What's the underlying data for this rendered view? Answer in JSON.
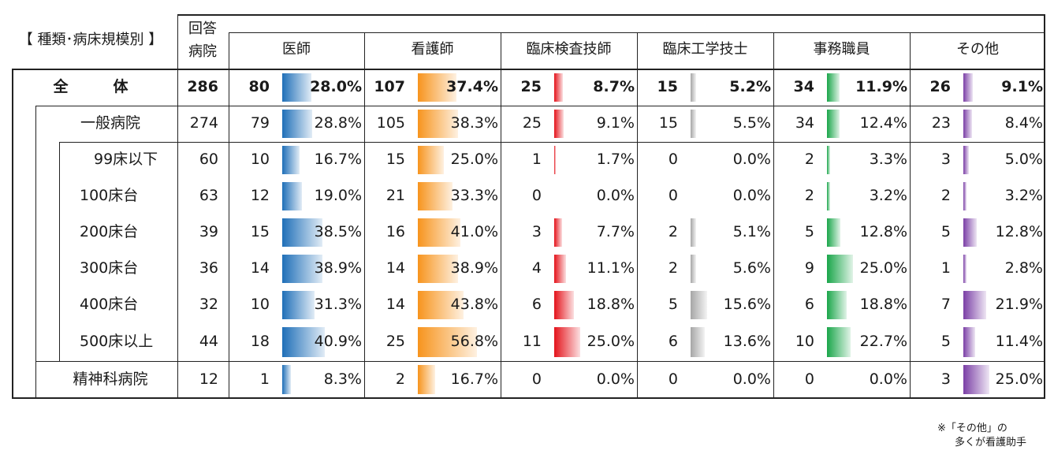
{
  "header": {
    "category_label": "【 種類･病床規模別 】",
    "respondents_label_line1": "回答",
    "respondents_label_line2": "病院",
    "columns": [
      {
        "label": "医師",
        "color": "#1f6fb8"
      },
      {
        "label": "看護師",
        "color": "#f7941d"
      },
      {
        "label": "臨床検査技師",
        "color": "#e4131b"
      },
      {
        "label": "臨床工学技士",
        "color": "#a6a6a6"
      },
      {
        "label": "事務職員",
        "color": "#1aa64a"
      },
      {
        "label": "その他",
        "color": "#7b3fa6"
      }
    ]
  },
  "rows": [
    {
      "label": "全　　　体",
      "respondents": "286",
      "bold": true,
      "cells": [
        {
          "count": "80",
          "pct": "28.0%",
          "value": 28.0
        },
        {
          "count": "107",
          "pct": "37.4%",
          "value": 37.4
        },
        {
          "count": "25",
          "pct": "8.7%",
          "value": 8.7
        },
        {
          "count": "15",
          "pct": "5.2%",
          "value": 5.2
        },
        {
          "count": "34",
          "pct": "11.9%",
          "value": 11.9
        },
        {
          "count": "26",
          "pct": "9.1%",
          "value": 9.1
        }
      ]
    },
    {
      "label": "一般病院",
      "respondents": "274",
      "cells": [
        {
          "count": "79",
          "pct": "28.8%",
          "value": 28.8
        },
        {
          "count": "105",
          "pct": "38.3%",
          "value": 38.3
        },
        {
          "count": "25",
          "pct": "9.1%",
          "value": 9.1
        },
        {
          "count": "15",
          "pct": "5.5%",
          "value": 5.5
        },
        {
          "count": "34",
          "pct": "12.4%",
          "value": 12.4
        },
        {
          "count": "23",
          "pct": "8.4%",
          "value": 8.4
        }
      ]
    },
    {
      "label": "99床以下",
      "respondents": "60",
      "cells": [
        {
          "count": "10",
          "pct": "16.7%",
          "value": 16.7
        },
        {
          "count": "15",
          "pct": "25.0%",
          "value": 25.0
        },
        {
          "count": "1",
          "pct": "1.7%",
          "value": 1.7
        },
        {
          "count": "0",
          "pct": "0.0%",
          "value": 0.0
        },
        {
          "count": "2",
          "pct": "3.3%",
          "value": 3.3
        },
        {
          "count": "3",
          "pct": "5.0%",
          "value": 5.0
        }
      ]
    },
    {
      "label": "100床台",
      "respondents": "63",
      "cells": [
        {
          "count": "12",
          "pct": "19.0%",
          "value": 19.0
        },
        {
          "count": "21",
          "pct": "33.3%",
          "value": 33.3
        },
        {
          "count": "0",
          "pct": "0.0%",
          "value": 0.0
        },
        {
          "count": "0",
          "pct": "0.0%",
          "value": 0.0
        },
        {
          "count": "2",
          "pct": "3.2%",
          "value": 3.2
        },
        {
          "count": "2",
          "pct": "3.2%",
          "value": 3.2
        }
      ]
    },
    {
      "label": "200床台",
      "respondents": "39",
      "cells": [
        {
          "count": "15",
          "pct": "38.5%",
          "value": 38.5
        },
        {
          "count": "16",
          "pct": "41.0%",
          "value": 41.0
        },
        {
          "count": "3",
          "pct": "7.7%",
          "value": 7.7
        },
        {
          "count": "2",
          "pct": "5.1%",
          "value": 5.1
        },
        {
          "count": "5",
          "pct": "12.8%",
          "value": 12.8
        },
        {
          "count": "5",
          "pct": "12.8%",
          "value": 12.8
        }
      ]
    },
    {
      "label": "300床台",
      "respondents": "36",
      "cells": [
        {
          "count": "14",
          "pct": "38.9%",
          "value": 38.9
        },
        {
          "count": "14",
          "pct": "38.9%",
          "value": 38.9
        },
        {
          "count": "4",
          "pct": "11.1%",
          "value": 11.1
        },
        {
          "count": "2",
          "pct": "5.6%",
          "value": 5.6
        },
        {
          "count": "9",
          "pct": "25.0%",
          "value": 25.0
        },
        {
          "count": "1",
          "pct": "2.8%",
          "value": 2.8
        }
      ]
    },
    {
      "label": "400床台",
      "respondents": "32",
      "cells": [
        {
          "count": "10",
          "pct": "31.3%",
          "value": 31.3
        },
        {
          "count": "14",
          "pct": "43.8%",
          "value": 43.8
        },
        {
          "count": "6",
          "pct": "18.8%",
          "value": 18.8
        },
        {
          "count": "5",
          "pct": "15.6%",
          "value": 15.6
        },
        {
          "count": "6",
          "pct": "18.8%",
          "value": 18.8
        },
        {
          "count": "7",
          "pct": "21.9%",
          "value": 21.9
        }
      ]
    },
    {
      "label": "500床以上",
      "respondents": "44",
      "cells": [
        {
          "count": "18",
          "pct": "40.9%",
          "value": 40.9
        },
        {
          "count": "25",
          "pct": "56.8%",
          "value": 56.8
        },
        {
          "count": "11",
          "pct": "25.0%",
          "value": 25.0
        },
        {
          "count": "6",
          "pct": "13.6%",
          "value": 13.6
        },
        {
          "count": "10",
          "pct": "22.7%",
          "value": 22.7
        },
        {
          "count": "5",
          "pct": "11.4%",
          "value": 11.4
        }
      ]
    },
    {
      "label": "精神科病院",
      "respondents": "12",
      "cells": [
        {
          "count": "1",
          "pct": "8.3%",
          "value": 8.3
        },
        {
          "count": "2",
          "pct": "16.7%",
          "value": 16.7
        },
        {
          "count": "0",
          "pct": "0.0%",
          "value": 0.0
        },
        {
          "count": "0",
          "pct": "0.0%",
          "value": 0.0
        },
        {
          "count": "0",
          "pct": "0.0%",
          "value": 0.0
        },
        {
          "count": "3",
          "pct": "25.0%",
          "value": 25.0
        }
      ]
    }
  ],
  "footnote": {
    "line1": "※「その他」の",
    "line2": "多くが看護助手"
  }
}
